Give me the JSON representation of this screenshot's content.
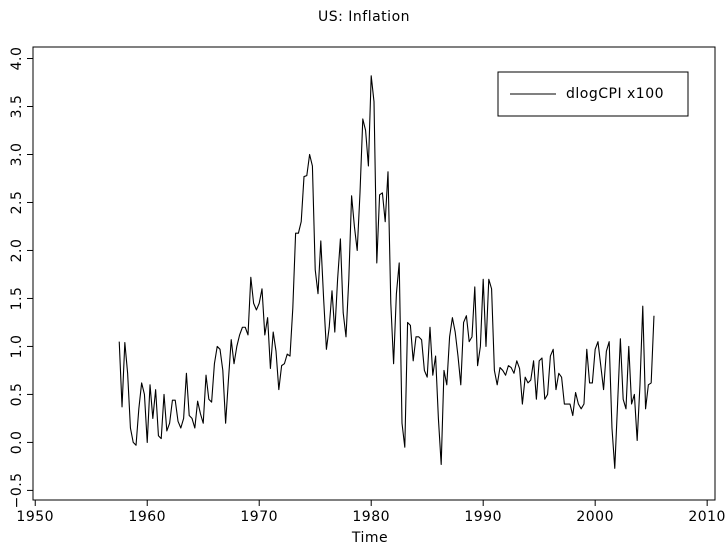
{
  "chart_data": {
    "type": "line",
    "title": "US: Inflation",
    "xlabel": "Time",
    "xlim": [
      1949.8,
      2010.7
    ],
    "ylim": [
      -0.6,
      4.12
    ],
    "xticks": [
      1950,
      1960,
      1970,
      1980,
      1990,
      2000,
      2010
    ],
    "yticks": [
      {
        "value": 4,
        "label": "4.0"
      },
      3.5,
      {
        "value": 3,
        "label": "3.0"
      },
      2.5,
      {
        "value": 2,
        "label": "2.0"
      },
      1.5,
      {
        "value": 1,
        "label": "1.0"
      },
      0.5,
      {
        "value": 0,
        "label": "0.0"
      },
      {
        "value": -0.5,
        "label": "−0.5"
      }
    ],
    "legend": "top-right",
    "x": [
      1957.5,
      1957.75,
      1958,
      1958.25,
      1958.5,
      1958.75,
      1959,
      1959.25,
      1959.5,
      1959.75,
      1960,
      1960.25,
      1960.5,
      1960.75,
      1961,
      1961.25,
      1961.5,
      1961.75,
      1962,
      1962.25,
      1962.5,
      1962.75,
      1963,
      1963.25,
      1963.5,
      1963.75,
      1964,
      1964.25,
      1964.5,
      1964.75,
      1965,
      1965.25,
      1965.5,
      1965.75,
      1966,
      1966.25,
      1966.5,
      1966.75,
      1967,
      1967.25,
      1967.5,
      1967.75,
      1968,
      1968.25,
      1968.5,
      1968.75,
      1969,
      1969.25,
      1969.5,
      1969.75,
      1970,
      1970.25,
      1970.5,
      1970.75,
      1971,
      1971.25,
      1971.5,
      1971.75,
      1972,
      1972.25,
      1972.5,
      1972.75,
      1973,
      1973.25,
      1973.5,
      1973.75,
      1974,
      1974.25,
      1974.5,
      1974.75,
      1975,
      1975.25,
      1975.5,
      1975.75,
      1976,
      1976.25,
      1976.5,
      1976.75,
      1977,
      1977.25,
      1977.5,
      1977.75,
      1978,
      1978.25,
      1978.5,
      1978.75,
      1979,
      1979.25,
      1979.5,
      1979.75,
      1980,
      1980.25,
      1980.5,
      1980.75,
      1981,
      1981.25,
      1981.5,
      1981.75,
      1982,
      1982.25,
      1982.5,
      1982.75,
      1983,
      1983.25,
      1983.5,
      1983.75,
      1984,
      1984.25,
      1984.5,
      1984.75,
      1985,
      1985.25,
      1985.5,
      1985.75,
      1986,
      1986.25,
      1986.5,
      1986.75,
      1987,
      1987.25,
      1987.5,
      1987.75,
      1988,
      1988.25,
      1988.5,
      1988.75,
      1989,
      1989.25,
      1989.5,
      1989.75,
      1990,
      1990.25,
      1990.5,
      1990.75,
      1991,
      1991.25,
      1991.5,
      1991.75,
      1992,
      1992.25,
      1992.5,
      1992.75,
      1993,
      1993.25,
      1993.5,
      1993.75,
      1994,
      1994.25,
      1994.5,
      1994.75,
      1995,
      1995.25,
      1995.5,
      1995.75,
      1996,
      1996.25,
      1996.5,
      1996.75,
      1997,
      1997.25,
      1997.5,
      1997.75,
      1998,
      1998.25,
      1998.5,
      1998.75,
      1999,
      1999.25,
      1999.5,
      1999.75,
      2000,
      2000.25,
      2000.5,
      2000.75,
      2001,
      2001.25,
      2001.5,
      2001.75,
      2002,
      2002.25,
      2002.5,
      2002.75,
      2003,
      2003.25,
      2003.5,
      2003.75,
      2004,
      2004.25,
      2004.5,
      2004.75,
      2005,
      2005.25
    ],
    "series": [
      {
        "name": "dlogCPI x100",
        "color": "#000000",
        "values": [
          1.05,
          0.37,
          1.04,
          0.72,
          0.15,
          0.0,
          -0.03,
          0.35,
          0.62,
          0.5,
          0.0,
          0.6,
          0.25,
          0.55,
          0.07,
          0.04,
          0.5,
          0.12,
          0.2,
          0.44,
          0.44,
          0.22,
          0.15,
          0.25,
          0.72,
          0.28,
          0.25,
          0.15,
          0.43,
          0.3,
          0.2,
          0.7,
          0.45,
          0.42,
          0.82,
          1.0,
          0.97,
          0.75,
          0.2,
          0.65,
          1.07,
          0.82,
          1.0,
          1.12,
          1.2,
          1.2,
          1.12,
          1.72,
          1.45,
          1.38,
          1.45,
          1.6,
          1.12,
          1.3,
          0.77,
          1.15,
          0.95,
          0.55,
          0.8,
          0.82,
          0.92,
          0.9,
          1.4,
          2.18,
          2.18,
          2.3,
          2.77,
          2.78,
          3.0,
          2.88,
          1.8,
          1.55,
          2.1,
          1.5,
          0.97,
          1.2,
          1.58,
          1.15,
          1.7,
          2.12,
          1.35,
          1.1,
          1.7,
          2.57,
          2.25,
          2.0,
          2.6,
          3.37,
          3.25,
          2.88,
          3.82,
          3.55,
          1.87,
          2.58,
          2.6,
          2.3,
          2.82,
          1.45,
          0.82,
          1.55,
          1.87,
          0.2,
          -0.05,
          1.25,
          1.22,
          0.85,
          1.1,
          1.1,
          1.07,
          0.75,
          0.68,
          1.2,
          0.7,
          0.9,
          0.25,
          -0.23,
          0.75,
          0.6,
          1.1,
          1.3,
          1.15,
          0.9,
          0.6,
          1.25,
          1.32,
          1.05,
          1.1,
          1.62,
          0.8,
          1.0,
          1.7,
          1.0,
          1.7,
          1.6,
          0.75,
          0.6,
          0.78,
          0.75,
          0.7,
          0.8,
          0.78,
          0.72,
          0.85,
          0.77,
          0.4,
          0.68,
          0.62,
          0.65,
          0.85,
          0.45,
          0.85,
          0.88,
          0.45,
          0.5,
          0.9,
          0.97,
          0.55,
          0.72,
          0.68,
          0.4,
          0.4,
          0.4,
          0.28,
          0.52,
          0.4,
          0.35,
          0.4,
          0.97,
          0.62,
          0.62,
          0.97,
          1.05,
          0.8,
          0.55,
          0.95,
          1.05,
          0.15,
          -0.27,
          0.4,
          1.08,
          0.45,
          0.35,
          1.0,
          0.4,
          0.5,
          0.02,
          0.6,
          1.42,
          0.35,
          0.6,
          0.62,
          1.32
        ]
      }
    ]
  }
}
